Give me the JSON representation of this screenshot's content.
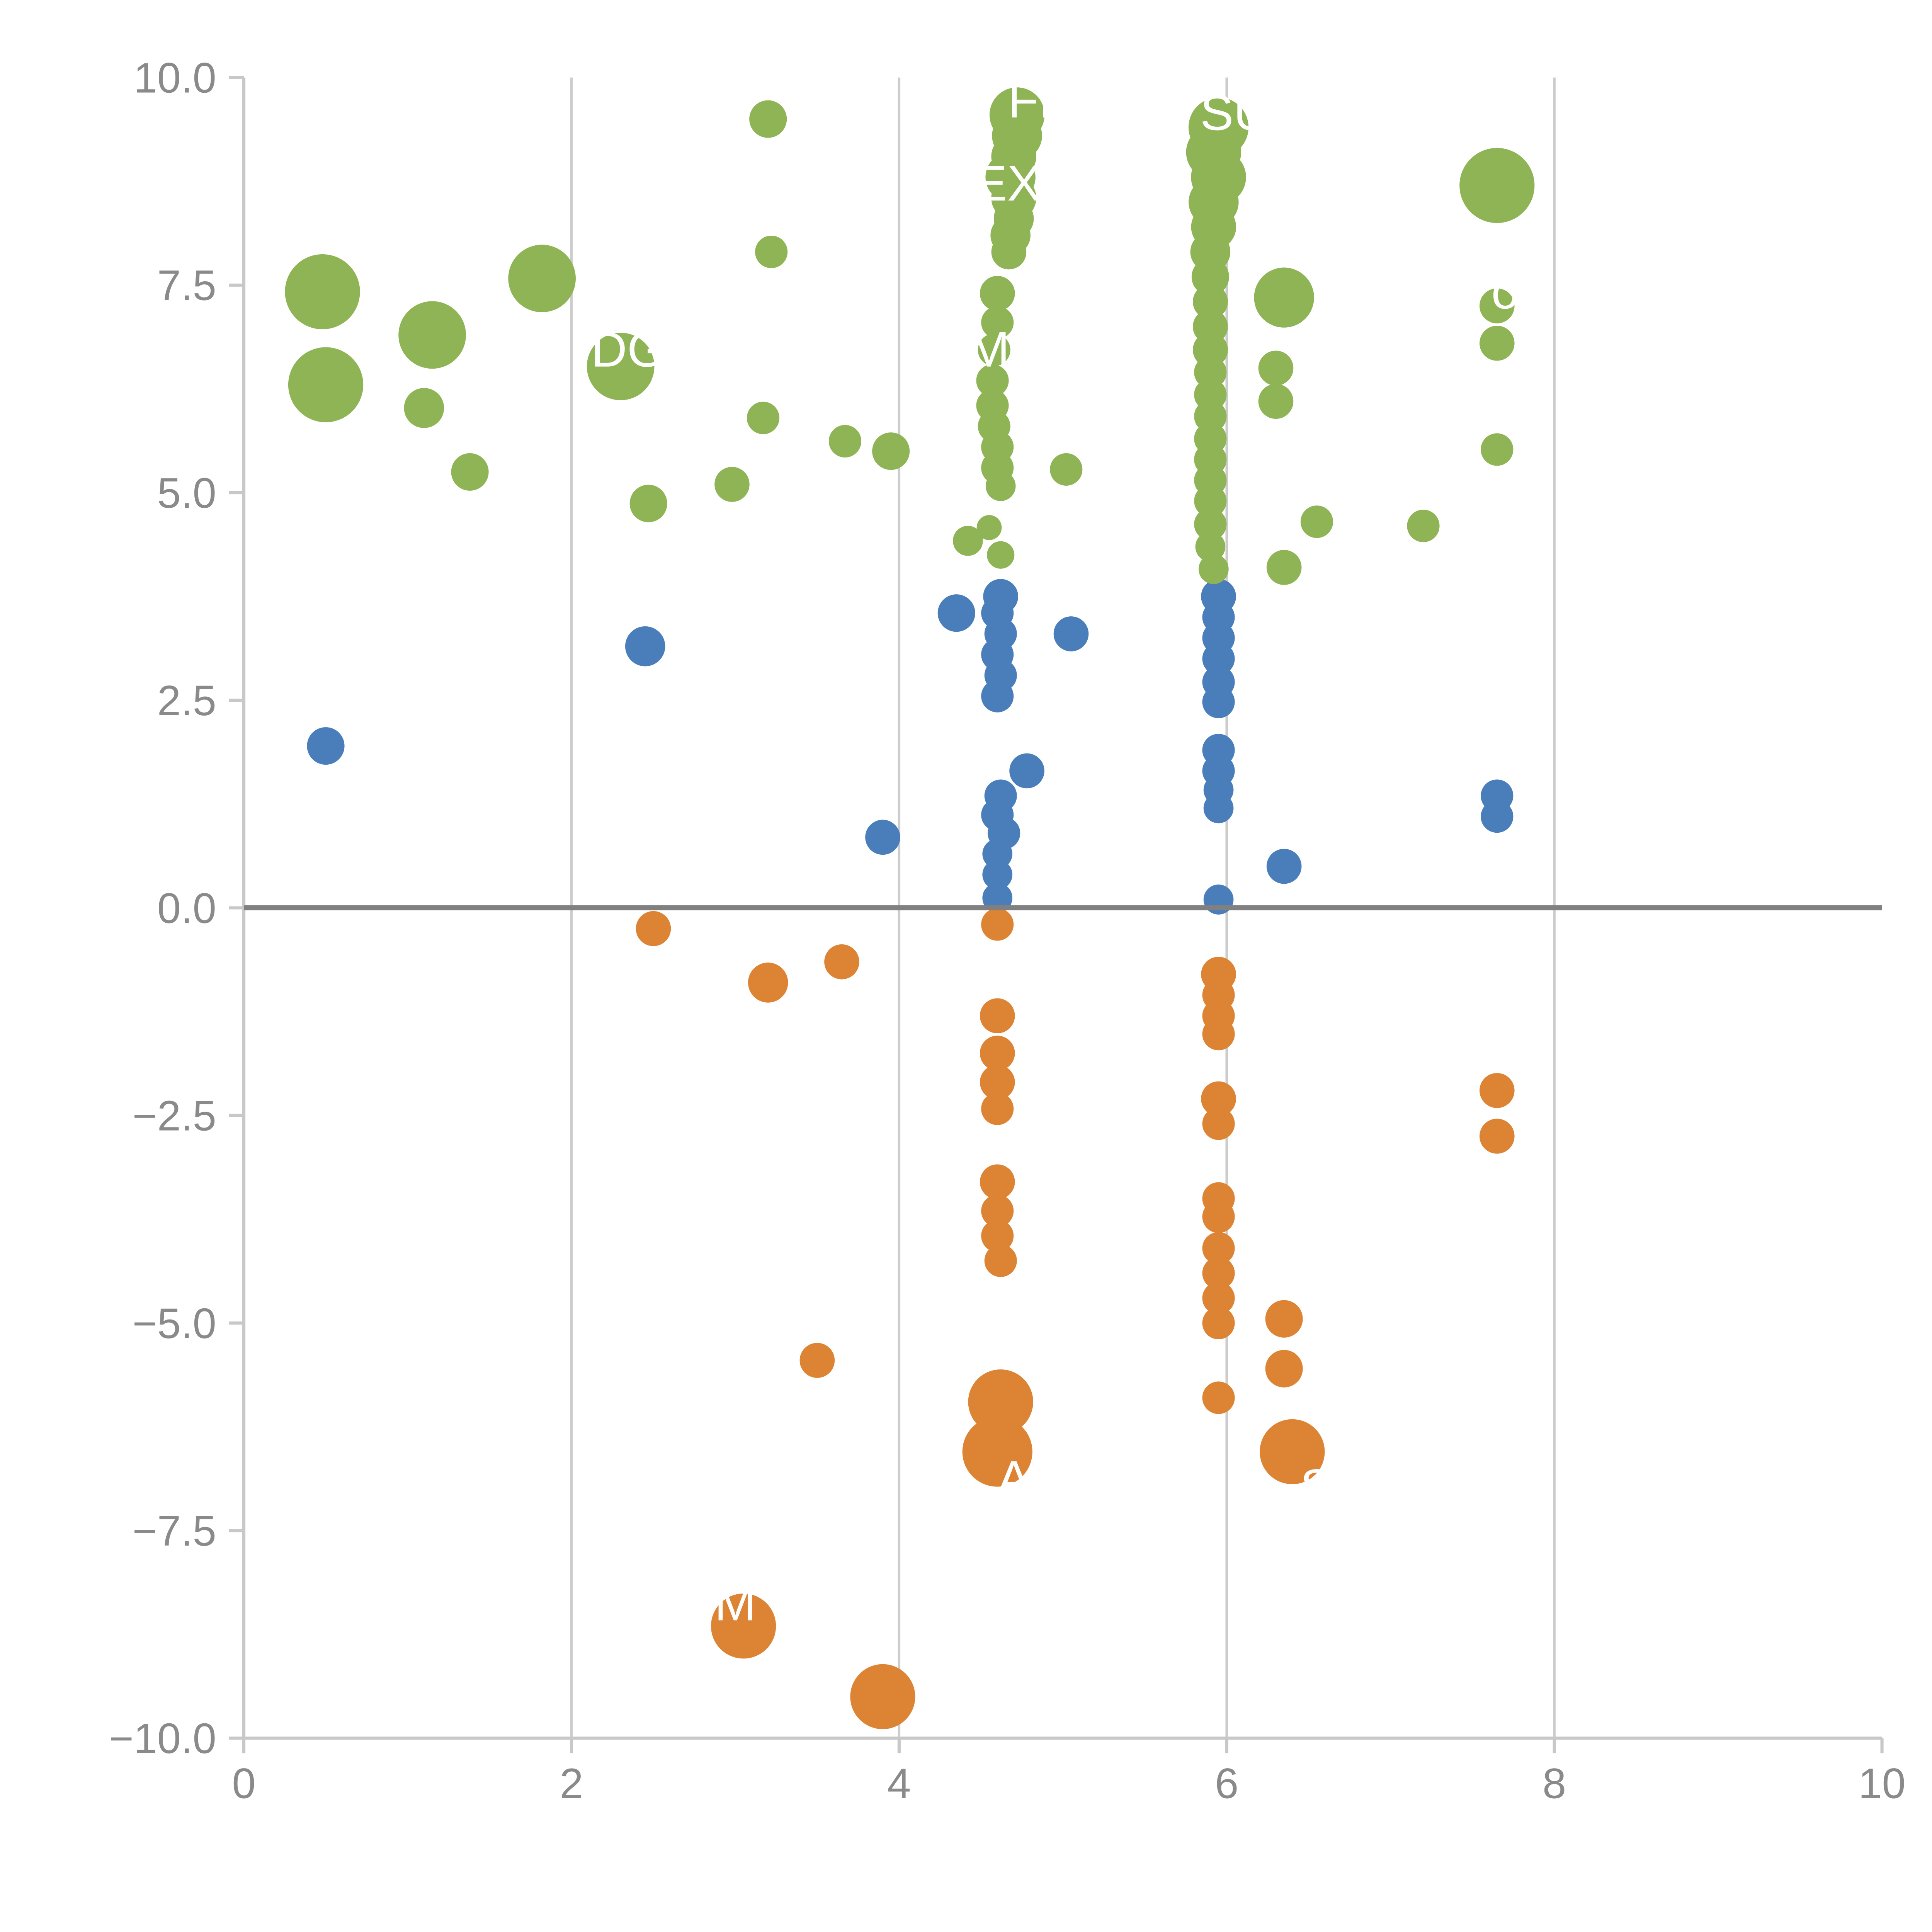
{
  "page": {
    "background": "#ffffff"
  },
  "chart_data": {
    "type": "scatter",
    "title": "",
    "xlabel": "",
    "ylabel": "",
    "xlim": [
      0,
      10
    ],
    "ylim": [
      -10,
      10
    ],
    "x_ticks": [
      0,
      2,
      4,
      6,
      8,
      10
    ],
    "x_tick_labels": [
      "0",
      "2",
      "4",
      "6",
      "8",
      "10"
    ],
    "y_ticks": [
      10.0,
      7.5,
      5.0,
      2.5,
      0.0,
      -2.5,
      -5.0,
      -7.5,
      -10.0
    ],
    "y_tick_labels": [
      "10.0",
      "7.5",
      "5.0",
      "2.5",
      "0.0",
      "−2.5",
      "−5.0",
      "−7.5",
      "−10.0"
    ],
    "grid_x": [
      2,
      4,
      6,
      8
    ],
    "grid_y": [],
    "zero_line_y": 0,
    "legend": "none",
    "colors": {
      "green": "#8fb455",
      "blue": "#4a7ebb",
      "orange": "#dd8434",
      "axis": "#c8c8c8",
      "tick_text": "#8a8a8a",
      "grid": "#cccccc",
      "zero_line": "#808080",
      "annotation_text": "#ffffff"
    },
    "series": [
      {
        "name": "green-bubbles",
        "color": "green",
        "points": [
          [
            0.48,
            7.42,
            30
          ],
          [
            0.5,
            6.3,
            30
          ],
          [
            1.15,
            6.9,
            27
          ],
          [
            1.1,
            6.02,
            16
          ],
          [
            1.38,
            5.25,
            15
          ],
          [
            1.82,
            7.58,
            27
          ],
          [
            2.3,
            6.52,
            27
          ],
          [
            2.47,
            4.87,
            15
          ],
          [
            2.98,
            5.1,
            14
          ],
          [
            3.2,
            9.5,
            15
          ],
          [
            3.22,
            7.9,
            13
          ],
          [
            3.17,
            5.9,
            13
          ],
          [
            3.67,
            5.62,
            13
          ],
          [
            3.95,
            5.5,
            15
          ],
          [
            4.72,
            9.55,
            22
          ],
          [
            4.72,
            9.3,
            20
          ],
          [
            4.7,
            9.05,
            18
          ],
          [
            4.68,
            8.8,
            20
          ],
          [
            4.7,
            8.55,
            18
          ],
          [
            4.7,
            8.3,
            16
          ],
          [
            4.68,
            8.1,
            16
          ],
          [
            4.67,
            7.9,
            14
          ],
          [
            4.6,
            7.4,
            14
          ],
          [
            4.6,
            7.05,
            13
          ],
          [
            4.58,
            6.72,
            13
          ],
          [
            4.57,
            6.35,
            13
          ],
          [
            4.57,
            6.05,
            13
          ],
          [
            4.58,
            5.8,
            13
          ],
          [
            4.6,
            5.55,
            13
          ],
          [
            4.6,
            5.3,
            13
          ],
          [
            4.62,
            5.08,
            12
          ],
          [
            4.42,
            4.42,
            12
          ],
          [
            4.55,
            4.58,
            10
          ],
          [
            4.62,
            4.25,
            11
          ],
          [
            5.02,
            5.28,
            13
          ],
          [
            5.95,
            9.4,
            24
          ],
          [
            5.92,
            9.1,
            22
          ],
          [
            5.95,
            8.8,
            22
          ],
          [
            5.92,
            8.5,
            20
          ],
          [
            5.92,
            8.2,
            18
          ],
          [
            5.9,
            7.9,
            16
          ],
          [
            5.9,
            7.6,
            15
          ],
          [
            5.9,
            7.3,
            14
          ],
          [
            5.9,
            7.0,
            14
          ],
          [
            5.9,
            6.72,
            14
          ],
          [
            5.9,
            6.45,
            13
          ],
          [
            5.9,
            6.18,
            13
          ],
          [
            5.9,
            5.92,
            13
          ],
          [
            5.9,
            5.65,
            13
          ],
          [
            5.9,
            5.4,
            13
          ],
          [
            5.9,
            5.15,
            13
          ],
          [
            5.9,
            4.9,
            13
          ],
          [
            5.9,
            4.62,
            13
          ],
          [
            5.9,
            4.35,
            12
          ],
          [
            5.92,
            4.08,
            12
          ],
          [
            6.35,
            7.35,
            24
          ],
          [
            6.3,
            6.5,
            14
          ],
          [
            6.3,
            6.1,
            14
          ],
          [
            6.35,
            4.1,
            14
          ],
          [
            6.55,
            4.65,
            13
          ],
          [
            7.2,
            4.6,
            13
          ],
          [
            7.65,
            8.7,
            30
          ],
          [
            7.65,
            7.25,
            14
          ],
          [
            7.65,
            6.8,
            14
          ],
          [
            7.65,
            5.52,
            13
          ]
        ]
      },
      {
        "name": "blue-bubbles",
        "color": "blue",
        "points": [
          [
            0.5,
            1.95,
            15
          ],
          [
            2.45,
            3.15,
            16
          ],
          [
            4.35,
            3.55,
            15
          ],
          [
            4.62,
            3.75,
            14
          ],
          [
            4.6,
            3.55,
            13
          ],
          [
            4.62,
            3.3,
            13
          ],
          [
            4.6,
            3.05,
            13
          ],
          [
            4.62,
            2.8,
            13
          ],
          [
            4.6,
            2.55,
            13
          ],
          [
            4.78,
            1.65,
            14
          ],
          [
            4.62,
            1.35,
            13
          ],
          [
            4.6,
            1.12,
            13
          ],
          [
            4.64,
            0.9,
            13
          ],
          [
            4.6,
            0.65,
            12
          ],
          [
            4.6,
            0.4,
            12
          ],
          [
            4.6,
            0.12,
            12
          ],
          [
            3.9,
            0.85,
            14
          ],
          [
            5.05,
            3.3,
            14
          ],
          [
            5.95,
            3.75,
            14
          ],
          [
            5.95,
            3.5,
            13
          ],
          [
            5.95,
            3.25,
            13
          ],
          [
            5.95,
            3.0,
            13
          ],
          [
            5.95,
            2.72,
            13
          ],
          [
            5.95,
            2.48,
            13
          ],
          [
            5.95,
            1.9,
            13
          ],
          [
            5.95,
            1.65,
            13
          ],
          [
            5.95,
            1.42,
            12
          ],
          [
            5.95,
            1.2,
            12
          ],
          [
            5.95,
            0.1,
            12
          ],
          [
            6.35,
            0.5,
            14
          ],
          [
            7.65,
            1.35,
            13
          ],
          [
            7.65,
            1.1,
            13
          ]
        ]
      },
      {
        "name": "orange-bubbles",
        "color": "orange",
        "points": [
          [
            2.5,
            -0.25,
            14
          ],
          [
            3.2,
            -0.9,
            16
          ],
          [
            3.65,
            -0.65,
            14
          ],
          [
            4.6,
            -0.2,
            13
          ],
          [
            4.6,
            -1.3,
            14
          ],
          [
            4.6,
            -1.75,
            14
          ],
          [
            4.6,
            -2.1,
            14
          ],
          [
            4.6,
            -2.42,
            13
          ],
          [
            4.6,
            -3.3,
            14
          ],
          [
            4.6,
            -3.65,
            13
          ],
          [
            4.6,
            -3.95,
            13
          ],
          [
            4.62,
            -4.25,
            13
          ],
          [
            3.5,
            -5.45,
            14
          ],
          [
            4.62,
            -5.95,
            26
          ],
          [
            4.6,
            -6.55,
            28
          ],
          [
            5.95,
            -0.8,
            14
          ],
          [
            5.95,
            -1.05,
            13
          ],
          [
            5.95,
            -1.3,
            13
          ],
          [
            5.95,
            -1.52,
            13
          ],
          [
            5.95,
            -2.3,
            14
          ],
          [
            5.95,
            -2.6,
            13
          ],
          [
            5.95,
            -3.5,
            13
          ],
          [
            5.95,
            -3.72,
            13
          ],
          [
            5.95,
            -4.1,
            13
          ],
          [
            5.95,
            -4.4,
            13
          ],
          [
            5.95,
            -4.7,
            13
          ],
          [
            5.95,
            -5.0,
            13
          ],
          [
            5.95,
            -5.9,
            13
          ],
          [
            6.35,
            -4.95,
            15
          ],
          [
            6.35,
            -5.55,
            15
          ],
          [
            6.4,
            -6.55,
            26
          ],
          [
            7.65,
            -2.2,
            14
          ],
          [
            7.65,
            -2.75,
            14
          ],
          [
            3.05,
            -8.65,
            26
          ],
          [
            3.9,
            -9.5,
            26
          ]
        ]
      }
    ],
    "annotations": [
      {
        "text": "FI",
        "x": 4.8,
        "y": 9.7
      },
      {
        "text": "EX",
        "x": 4.66,
        "y": 8.7
      },
      {
        "text": "SU",
        "x": 6.05,
        "y": 9.55
      },
      {
        "text": "DGE",
        "x": 2.45,
        "y": 6.7
      },
      {
        "text": "MP",
        "x": 4.65,
        "y": 6.7
      },
      {
        "text": "o",
        "x": 7.7,
        "y": 7.4
      },
      {
        "text": "A",
        "x": 4.7,
        "y": -6.9
      },
      {
        "text": "S",
        "x": 6.55,
        "y": -7.0
      },
      {
        "text": "M",
        "x": 3.0,
        "y": -8.4
      }
    ]
  }
}
